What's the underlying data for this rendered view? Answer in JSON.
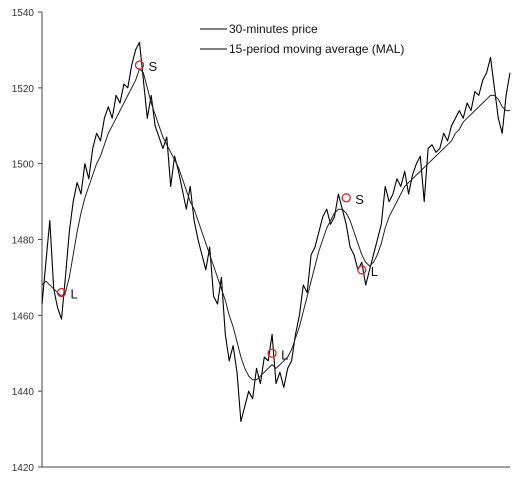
{
  "chart_data": {
    "type": "line",
    "title": "",
    "xlabel": "",
    "ylabel": "",
    "ylim": [
      1420,
      1540
    ],
    "yticks": [
      1420,
      1440,
      1460,
      1480,
      1500,
      1520,
      1540
    ],
    "grid": false,
    "legend_position": "top-center",
    "x": [
      0,
      1,
      2,
      3,
      4,
      5,
      6,
      7,
      8,
      9,
      10,
      11,
      12,
      13,
      14,
      15,
      16,
      17,
      18,
      19,
      20,
      21,
      22,
      23,
      24,
      25,
      26,
      27,
      28,
      29,
      30,
      31,
      32,
      33,
      34,
      35,
      36,
      37,
      38,
      39,
      40,
      41,
      42,
      43,
      44,
      45,
      46,
      47,
      48,
      49,
      50,
      51,
      52,
      53,
      54,
      55,
      56,
      57,
      58,
      59,
      60,
      61,
      62,
      63,
      64,
      65,
      66,
      67,
      68,
      69,
      70,
      71,
      72,
      73,
      74,
      75,
      76,
      77,
      78,
      79,
      80,
      81,
      82,
      83,
      84,
      85,
      86,
      87,
      88,
      89,
      90,
      91,
      92,
      93,
      94,
      95,
      96,
      97,
      98,
      99,
      100,
      101,
      102,
      103,
      104,
      105,
      106,
      107,
      108,
      109,
      110,
      111,
      112,
      113,
      114,
      115,
      116,
      117,
      118,
      119,
      120
    ],
    "series": [
      {
        "name": "30-minutes price",
        "values": [
          1463,
          1474,
          1485,
          1467,
          1462,
          1459,
          1470,
          1482,
          1490,
          1495,
          1492,
          1500,
          1496,
          1504,
          1508,
          1506,
          1512,
          1515,
          1512,
          1518,
          1516,
          1521,
          1520,
          1526,
          1530,
          1532,
          1522,
          1512,
          1518,
          1510,
          1507,
          1504,
          1507,
          1494,
          1502,
          1498,
          1493,
          1488,
          1494,
          1485,
          1480,
          1476,
          1472,
          1478,
          1465,
          1463,
          1470,
          1455,
          1448,
          1452,
          1445,
          1432,
          1436,
          1440,
          1438,
          1446,
          1442,
          1449,
          1448,
          1455,
          1442,
          1445,
          1441,
          1446,
          1448,
          1455,
          1460,
          1468,
          1466,
          1476,
          1478,
          1482,
          1486,
          1488,
          1484,
          1486,
          1492,
          1488,
          1484,
          1478,
          1476,
          1472,
          1474,
          1468,
          1472,
          1476,
          1480,
          1484,
          1494,
          1490,
          1492,
          1496,
          1494,
          1498,
          1492,
          1497,
          1500,
          1502,
          1490,
          1504,
          1505,
          1503,
          1504,
          1508,
          1506,
          1510,
          1512,
          1514,
          1512,
          1516,
          1514,
          1519,
          1518,
          1522,
          1524,
          1528,
          1520,
          1512,
          1508,
          1518,
          1524
        ]
      },
      {
        "name": "15-period moving average (MAL)",
        "values": [
          1468,
          1469,
          1468,
          1467,
          1466,
          1465,
          1466,
          1470,
          1476,
          1482,
          1487,
          1491,
          1494,
          1497,
          1500,
          1502,
          1505,
          1508,
          1510,
          1512,
          1514,
          1516,
          1518,
          1520,
          1522,
          1525,
          1524,
          1520,
          1516,
          1513,
          1510,
          1507,
          1505,
          1503,
          1501,
          1499,
          1496,
          1493,
          1490,
          1488,
          1485,
          1482,
          1479,
          1476,
          1473,
          1470,
          1467,
          1464,
          1460,
          1457,
          1453,
          1449,
          1446,
          1444,
          1443,
          1443,
          1444,
          1445,
          1446,
          1447,
          1446,
          1447,
          1448,
          1449,
          1451,
          1454,
          1457,
          1461,
          1465,
          1469,
          1473,
          1477,
          1480,
          1483,
          1485,
          1487,
          1488,
          1488,
          1487,
          1485,
          1482,
          1479,
          1476,
          1474,
          1473,
          1474,
          1476,
          1479,
          1483,
          1486,
          1488,
          1490,
          1492,
          1494,
          1495,
          1496,
          1497,
          1498,
          1499,
          1500,
          1501,
          1502,
          1503,
          1504,
          1505,
          1506,
          1508,
          1509,
          1511,
          1512,
          1513,
          1514,
          1515,
          1516,
          1517,
          1518,
          1518,
          1517,
          1515,
          1514,
          1514
        ]
      }
    ],
    "annotations": [
      {
        "label": "L",
        "x": 5,
        "y": 1466
      },
      {
        "label": "S",
        "x": 25,
        "y": 1526
      },
      {
        "label": "L",
        "x": 59,
        "y": 1450
      },
      {
        "label": "S",
        "x": 78,
        "y": 1491
      },
      {
        "label": "L",
        "x": 82,
        "y": 1472
      }
    ],
    "colors": {
      "price_line": "#000000",
      "ma_line": "#222222",
      "marker": "#d62728",
      "axis": "#444444"
    }
  }
}
